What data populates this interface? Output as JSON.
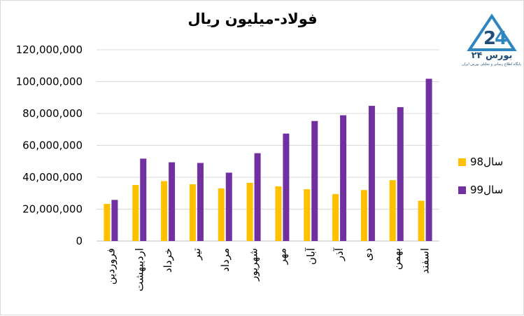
{
  "logo": {
    "name": "بورس ۲۴",
    "tagline": "پایگاه اطلاع رسانی و تحلیلی بورس ایران",
    "colors": {
      "primary": "#1f4e79",
      "accent": "#2e86c1"
    }
  },
  "chart_data": {
    "type": "bar",
    "title": "فولاد-میلیون ریال",
    "categories": [
      "فروردین",
      "اردیبهشت",
      "خرداد",
      "تیر",
      "مرداد",
      "شهریور",
      "مهر",
      "آبان",
      "آذر",
      "دی",
      "بهمن",
      "اسفند"
    ],
    "series": [
      {
        "name": "سال98",
        "color": "#ffc000",
        "values": [
          23300000,
          35200000,
          37600000,
          35600000,
          33000000,
          36500000,
          34300000,
          32500000,
          29500000,
          32000000,
          38200000,
          25300000
        ]
      },
      {
        "name": "سال99",
        "color": "#7030a0",
        "values": [
          25800000,
          51700000,
          49400000,
          49000000,
          42900000,
          55100000,
          67400000,
          75300000,
          78900000,
          84800000,
          84000000,
          101800000
        ]
      }
    ],
    "yticks": [
      "0",
      "20,000,000",
      "40,000,000",
      "60,000,000",
      "80,000,000",
      "100,000,000",
      "120,000,000"
    ],
    "ylim": [
      0,
      120000000
    ],
    "grid": true,
    "legend_position": "right"
  }
}
